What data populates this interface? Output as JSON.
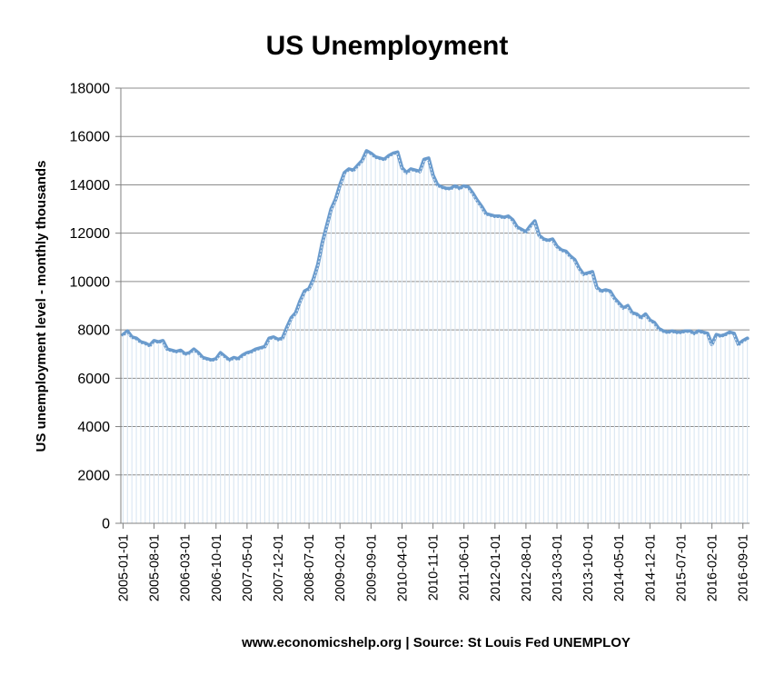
{
  "chart_data": {
    "type": "area",
    "title": "US Unemployment",
    "ylabel": "US unemployment level - monthly thousands",
    "xlabel": "www.economicshelp.org | Source: St Louis Fed UNEMPLOY",
    "ylim": [
      0,
      18000
    ],
    "yticks": [
      "0",
      "2000",
      "4000",
      "6000",
      "8000",
      "10000",
      "12000",
      "14000",
      "16000",
      "18000"
    ],
    "x_range": [
      "2005-01-01",
      "2017-02-01"
    ],
    "x_tick_labels": [
      "2005-01-01",
      "2005-08-01",
      "2006-03-01",
      "2006-10-01",
      "2007-05-01",
      "2007-12-01",
      "2008-07-01",
      "2009-02-01",
      "2009-09-01",
      "2010-04-01",
      "2010-11-01",
      "2011-06-01",
      "2012-01-01",
      "2012-08-01",
      "2013-03-01",
      "2013-10-01",
      "2014-05-01",
      "2014-12-01",
      "2015-07-01",
      "2016-02-01",
      "2016-09-01"
    ],
    "grid": true,
    "legend": "none",
    "colors": {
      "line": "#6a9bcd",
      "fill": "#dce8f3"
    },
    "series": [
      {
        "values": [
          7800,
          7950,
          7700,
          7650,
          7500,
          7450,
          7350,
          7550,
          7500,
          7550,
          7200,
          7150,
          7100,
          7150,
          7000,
          7050,
          7200,
          7050,
          6850,
          6800,
          6750,
          6800,
          7050,
          6900,
          6750,
          6850,
          6800,
          6950,
          7050,
          7100,
          7200,
          7250,
          7300,
          7650,
          7700,
          7600,
          7650,
          8100,
          8500,
          8700,
          9200,
          9600,
          9700,
          10100,
          10700,
          11600,
          12300,
          13000,
          13400,
          14000,
          14500,
          14650,
          14600,
          14800,
          15000,
          15400,
          15300,
          15150,
          15100,
          15050,
          15200,
          15300,
          15350,
          14700,
          14500,
          14650,
          14600,
          14550,
          15050,
          15100,
          14400,
          14000,
          13900,
          13850,
          13850,
          13950,
          13850,
          13950,
          13900,
          13650,
          13350,
          13100,
          12800,
          12750,
          12700,
          12700,
          12650,
          12700,
          12550,
          12250,
          12150,
          12050,
          12300,
          12500,
          11900,
          11750,
          11700,
          11750,
          11450,
          11300,
          11250,
          11050,
          10900,
          10550,
          10300,
          10350,
          10400,
          9750,
          9600,
          9650,
          9600,
          9300,
          9100,
          8900,
          9000,
          8700,
          8650,
          8500,
          8650,
          8400,
          8300,
          8050,
          7950,
          7900,
          7950,
          7900,
          7900,
          7950,
          7950,
          7850,
          7950,
          7900,
          7850,
          7400,
          7800,
          7750,
          7800,
          7900,
          7850,
          7400,
          7550,
          7650
        ]
      }
    ]
  }
}
